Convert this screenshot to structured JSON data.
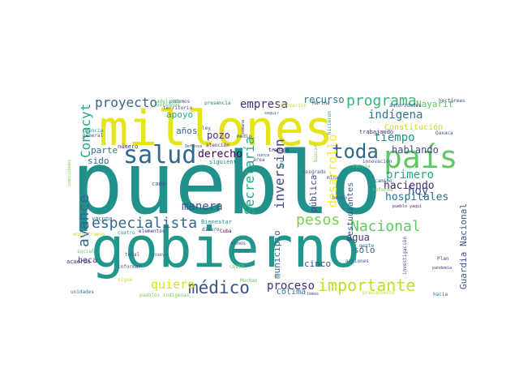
{
  "words": [
    {
      "text": "pueblo",
      "color": "#21918c"
    },
    {
      "text": "gobierno",
      "color": "#1f978b"
    },
    {
      "text": "millones",
      "color": "#e5e419"
    },
    {
      "text": "país",
      "color": "#5ec962"
    },
    {
      "text": "salud",
      "color": "#31688e"
    },
    {
      "text": "importante",
      "color": "#bddf26"
    },
    {
      "text": "médico",
      "color": "#3b528b"
    },
    {
      "text": "Nacional",
      "color": "#5ec962"
    },
    {
      "text": "programa",
      "color": "#35b779"
    },
    {
      "text": "toda",
      "color": "#31688e"
    },
    {
      "text": "pesos",
      "color": "#7ad151"
    },
    {
      "text": "especialista",
      "color": "#31688e"
    },
    {
      "text": "proyecto",
      "color": "#31688e"
    },
    {
      "text": "empresa",
      "color": "#482878"
    },
    {
      "text": "Conacyt",
      "color": "#22a884"
    },
    {
      "text": "avance",
      "color": "#31688e"
    },
    {
      "text": "indígena",
      "color": "#2a788e"
    },
    {
      "text": "quiero",
      "color": "#d8e219"
    },
    {
      "text": "proceso",
      "color": "#482878"
    },
    {
      "text": "Secretaría",
      "color": "#22a884"
    },
    {
      "text": "inversión",
      "color": "#414487"
    },
    {
      "text": "desarrollo",
      "color": "#fde725"
    },
    {
      "text": "tiempo",
      "color": "#21918c"
    },
    {
      "text": "hoy",
      "color": "#3b528b"
    },
    {
      "text": "primero",
      "color": "#22a884"
    },
    {
      "text": "haciendo",
      "color": "#482878"
    },
    {
      "text": "hablando",
      "color": "#3e4989"
    },
    {
      "text": "hospitales",
      "color": "#2c728e"
    },
    {
      "text": "Nayarit",
      "color": "#5ec962"
    },
    {
      "text": "recurso",
      "color": "#2a788e"
    },
    {
      "text": "derecho",
      "color": "#440154"
    },
    {
      "text": "manera",
      "color": "#3b528b"
    },
    {
      "text": "Guardia Nacional",
      "color": "#3b528b"
    },
    {
      "text": "agua",
      "color": "#443983"
    },
    {
      "text": "apoyo",
      "color": "#22a884"
    },
    {
      "text": "años",
      "color": "#31688e"
    },
    {
      "text": "pozo",
      "color": "#482878"
    },
    {
      "text": "parte",
      "color": "#2c728e"
    },
    {
      "text": "sido",
      "color": "#2c728e"
    },
    {
      "text": "cinco",
      "color": "#3b528b"
    },
    {
      "text": "municipio",
      "color": "#31688e"
    },
    {
      "text": "pública",
      "color": "#3e4989"
    },
    {
      "text": "sólo",
      "color": "#31688e"
    },
    {
      "text": "Colima",
      "color": "#2c728e"
    },
    {
      "text": "estudiantes",
      "color": "#3b528b"
    },
    {
      "text": "Constitución",
      "color": "#bddf26"
    },
    {
      "text": "beca",
      "color": "#443983"
    },
    {
      "text": "vacuna",
      "color": "#31688e"
    },
    {
      "text": "número",
      "color": "#472d7b"
    },
    {
      "text": "total",
      "color": "#3b528b"
    },
    {
      "text": "cada",
      "color": "#3b528b"
    },
    {
      "text": "Bienestar",
      "color": "#21918c"
    },
    {
      "text": "dinero",
      "color": "#3b528b"
    },
    {
      "text": "elementos",
      "color": "#472d7b"
    },
    {
      "text": "cuatro",
      "color": "#21918c"
    },
    {
      "text": "social",
      "color": "#5ec962"
    },
    {
      "text": "acuerdo",
      "color": "#482878"
    },
    {
      "text": "informar",
      "color": "#3b528b"
    },
    {
      "text": "nuevo",
      "color": "#2c728e"
    },
    {
      "text": "COVID",
      "color": "#7ad151"
    },
    {
      "text": "vemos",
      "color": "#3b528b"
    },
    {
      "text": "grande",
      "color": "#2c728e"
    },
    {
      "text": "Muchas",
      "color": "#5ec962"
    },
    {
      "text": "sigue",
      "color": "#bddf26"
    },
    {
      "text": "unidades",
      "color": "#2a788e"
    },
    {
      "text": "pueblos indígenas",
      "color": "#7ad151"
    },
    {
      "text": "temas",
      "color": "#3b528b"
    },
    {
      "text": "presupuesto",
      "color": "#bddf26"
    },
    {
      "text": "hacia",
      "color": "#2c728e"
    },
    {
      "text": "Plan",
      "color": "#3e4989"
    },
    {
      "text": "pandemia",
      "color": "#3e4989"
    },
    {
      "text": "investigación",
      "color": "#3b528b"
    },
    {
      "text": "acciones",
      "color": "#3b528b"
    },
    {
      "text": "gente",
      "color": "#31688e"
    },
    {
      "text": "pueblo yaqui",
      "color": "#482878"
    },
    {
      "text": "hecho",
      "color": "#3b528b"
    },
    {
      "text": "camino",
      "color": "#31688e"
    },
    {
      "text": "reforma",
      "color": "#7ad151"
    },
    {
      "text": "Patria",
      "color": "#5ec962"
    },
    {
      "text": "innovación",
      "color": "#3b528b"
    },
    {
      "text": "mina",
      "color": "#3b528b"
    },
    {
      "text": "posgrado",
      "color": "#3b528b"
    },
    {
      "text": "trabajo",
      "color": "#440154"
    },
    {
      "text": "nunca",
      "color": "#3b528b"
    },
    {
      "text": "área",
      "color": "#3b528b"
    },
    {
      "text": "siguiente",
      "color": "#21918c"
    },
    {
      "text": "Defensa",
      "color": "#3b528b"
    },
    {
      "text": "atención",
      "color": "#482878"
    },
    {
      "text": "Cuba",
      "color": "#440154"
    },
    {
      "text": "medio",
      "color": "#3b528b"
    },
    {
      "text": "semana",
      "color": "#482878"
    },
    {
      "text": "ley",
      "color": "#3b528b"
    },
    {
      "text": "presencia",
      "color": "#2c728e"
    },
    {
      "text": "podemos",
      "color": "#3b528b"
    },
    {
      "text": "territorio",
      "color": "#3b528b"
    },
    {
      "text": "personas",
      "color": "#5ec962"
    },
    {
      "text": "adelante",
      "color": "#5ec962"
    },
    {
      "text": "ciencia",
      "color": "#21918c"
    },
    {
      "text": "general",
      "color": "#3b528b"
    },
    {
      "text": "comunidades",
      "color": "#7ad151"
    },
    {
      "text": "encontramos",
      "color": "#bddf26"
    },
    {
      "text": "seguir",
      "color": "#3b528b"
    },
    {
      "text": "innovación",
      "color": "#bddf26"
    },
    {
      "text": "Marina",
      "color": "#3b528b"
    },
    {
      "text": "autoridades",
      "color": "#3b528b"
    },
    {
      "text": "hectáreas",
      "color": "#3b528b"
    },
    {
      "text": "Oaxaca",
      "color": "#3b528b"
    },
    {
      "text": "hicieron",
      "color": "#21918c"
    },
    {
      "text": "trabajando",
      "color": "#482878"
    },
    {
      "text": "buscar",
      "color": "#7ad151"
    },
    {
      "text": "ayer",
      "color": "#21918c"
    }
  ]
}
